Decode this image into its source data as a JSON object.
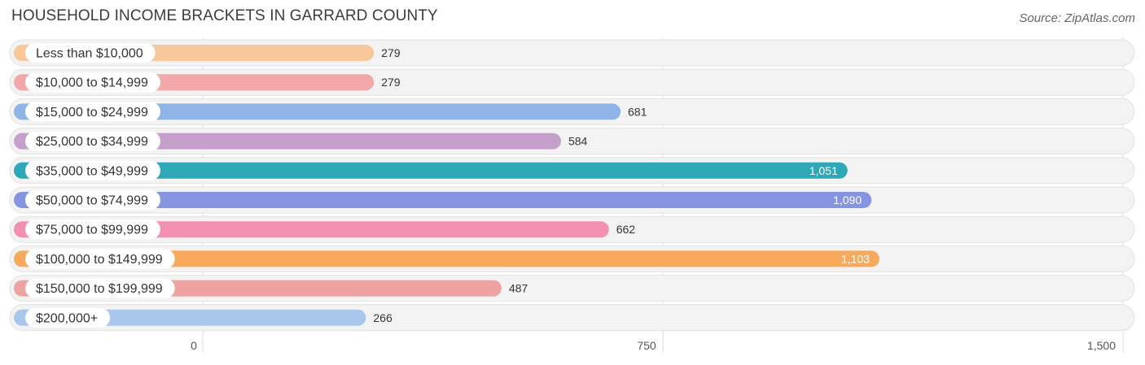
{
  "header": {
    "title": "HOUSEHOLD INCOME BRACKETS IN GARRARD COUNTY",
    "source": "Source: ZipAtlas.com"
  },
  "chart_data": {
    "type": "bar",
    "orientation": "horizontal",
    "categories": [
      "Less than $10,000",
      "$10,000 to $14,999",
      "$15,000 to $24,999",
      "$25,000 to $34,999",
      "$35,000 to $49,999",
      "$50,000 to $74,999",
      "$75,000 to $99,999",
      "$100,000 to $149,999",
      "$150,000 to $199,999",
      "$200,000+"
    ],
    "values": [
      279,
      279,
      681,
      584,
      1051,
      1090,
      662,
      1103,
      487,
      266
    ],
    "value_labels": [
      "279",
      "279",
      "681",
      "584",
      "1,051",
      "1,090",
      "662",
      "1,103",
      "487",
      "266"
    ],
    "colors": [
      "#f9c89a",
      "#f2a8a8",
      "#8fb5e6",
      "#c4a0ca",
      "#2ea8b7",
      "#8595e0",
      "#f38fb0",
      "#f8a95c",
      "#eea2a2",
      "#a9c7ec"
    ],
    "label_inside_bar": [
      false,
      false,
      false,
      false,
      true,
      true,
      false,
      true,
      false,
      false
    ],
    "xlim": [
      0,
      1500
    ],
    "ticks": [
      0,
      750,
      1500
    ],
    "tick_labels": [
      "0",
      "750",
      "1,500"
    ],
    "grid": true
  }
}
